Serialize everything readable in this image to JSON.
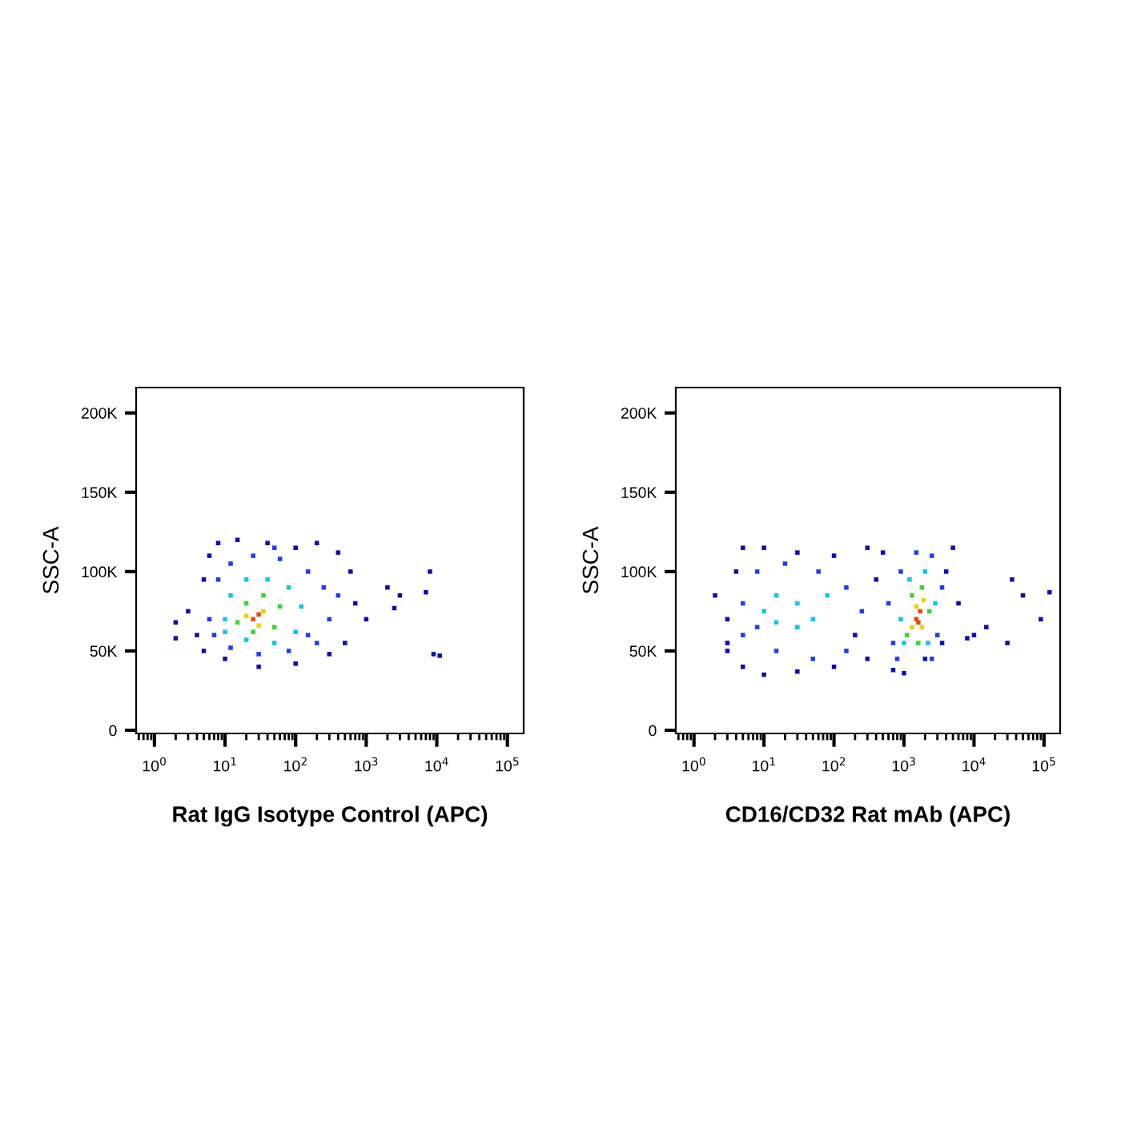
{
  "chart_data": [
    {
      "type": "scatter",
      "xlabel": "Rat IgG Isotype Control (APC)",
      "ylabel": "SSC-A",
      "log": "x",
      "marker": "square",
      "grid": false,
      "xlim": [
        0.55,
        170000
      ],
      "ylim": [
        -2000,
        216000
      ],
      "xticks": [
        {
          "value": 1,
          "label": "10$^{0}$"
        },
        {
          "value": 10,
          "label": "10$^{1}$"
        },
        {
          "value": 100,
          "label": "10$^{2}$"
        },
        {
          "value": 1000,
          "label": "10$^{3}$"
        },
        {
          "value": 10000,
          "label": "10$^{4}$"
        },
        {
          "value": 100000,
          "label": "10$^{5}$"
        }
      ],
      "yticks": [
        0,
        {
          "value": 50000,
          "label": "50K"
        },
        {
          "value": 100000,
          "label": "100K"
        },
        {
          "value": 150000,
          "label": "150K"
        },
        {
          "value": 200000,
          "label": "200K"
        }
      ],
      "series": [
        {
          "color": "#1010a0",
          "x": [
            4,
            3,
            5,
            6,
            8,
            15,
            40,
            100,
            200,
            400,
            600,
            500,
            300,
            100,
            30,
            10,
            5,
            2,
            2,
            700,
            2000,
            3000,
            8000,
            7000,
            9000,
            11000,
            2500,
            1000
          ],
          "values": [
            60000,
            75000,
            95000,
            110000,
            118000,
            120000,
            118000,
            115000,
            118000,
            112000,
            100000,
            55000,
            48000,
            42000,
            40000,
            45000,
            50000,
            68000,
            58000,
            80000,
            90000,
            85000,
            100000,
            87000,
            48000,
            47000,
            77000,
            70000
          ]
        },
        {
          "color": "#2040e0",
          "x": [
            6,
            8,
            12,
            25,
            60,
            150,
            250,
            300,
            200,
            80,
            30,
            12,
            7,
            400,
            50,
            150
          ],
          "values": [
            70000,
            95000,
            105000,
            110000,
            108000,
            100000,
            90000,
            70000,
            55000,
            50000,
            48000,
            52000,
            60000,
            85000,
            115000,
            60000
          ]
        },
        {
          "color": "#20c0e0",
          "x": [
            10,
            12,
            20,
            40,
            80,
            120,
            100,
            50,
            20,
            10
          ],
          "values": [
            70000,
            85000,
            95000,
            95000,
            90000,
            78000,
            62000,
            55000,
            57000,
            62000
          ]
        },
        {
          "color": "#40d040",
          "x": [
            15,
            20,
            35,
            60,
            50,
            25
          ],
          "values": [
            68000,
            80000,
            85000,
            78000,
            65000,
            62000
          ]
        },
        {
          "color": "#e8d020",
          "x": [
            20,
            35,
            30
          ],
          "values": [
            72000,
            75000,
            66000
          ]
        },
        {
          "color": "#e05010",
          "x": [
            25,
            30
          ],
          "values": [
            70000,
            73000
          ]
        }
      ]
    },
    {
      "type": "scatter",
      "xlabel": "CD16/CD32 Rat mAb (APC)",
      "ylabel": "SSC-A",
      "log": "x",
      "marker": "square",
      "grid": false,
      "xlim": [
        0.55,
        170000
      ],
      "ylim": [
        -2000,
        216000
      ],
      "xticks": [
        {
          "value": 1,
          "label": "10$^{0}$"
        },
        {
          "value": 10,
          "label": "10$^{1}$"
        },
        {
          "value": 100,
          "label": "10$^{2}$"
        },
        {
          "value": 1000,
          "label": "10$^{3}$"
        },
        {
          "value": 10000,
          "label": "10$^{4}$"
        },
        {
          "value": 100000,
          "label": "10$^{5}$"
        }
      ],
      "yticks": [
        0,
        {
          "value": 50000,
          "label": "50K"
        },
        {
          "value": 100000,
          "label": "100K"
        },
        {
          "value": 150000,
          "label": "150K"
        },
        {
          "value": 200000,
          "label": "200K"
        }
      ],
      "series": [
        {
          "color": "#1010a0",
          "x": [
            2,
            3,
            3,
            4,
            5,
            10,
            30,
            100,
            300,
            500,
            3,
            5,
            10,
            30,
            100,
            300,
            700,
            1000,
            2000,
            3500,
            4000,
            5000,
            6000,
            8000,
            10000,
            15000,
            30000,
            35000,
            50000,
            90000,
            120000,
            200,
            400
          ],
          "values": [
            85000,
            50000,
            55000,
            100000,
            115000,
            115000,
            112000,
            110000,
            115000,
            112000,
            70000,
            40000,
            35000,
            37000,
            40000,
            45000,
            38000,
            36000,
            45000,
            55000,
            100000,
            115000,
            80000,
            58000,
            60000,
            65000,
            55000,
            95000,
            85000,
            70000,
            87000,
            60000,
            95000
          ]
        },
        {
          "color": "#2040e0",
          "x": [
            5,
            5,
            8,
            20,
            60,
            150,
            250,
            150,
            50,
            15,
            8,
            700,
            800,
            900,
            1500,
            2500,
            3500,
            3000,
            2500,
            600
          ],
          "values": [
            80000,
            60000,
            100000,
            105000,
            100000,
            90000,
            75000,
            50000,
            45000,
            50000,
            65000,
            55000,
            45000,
            100000,
            112000,
            110000,
            90000,
            60000,
            45000,
            80000
          ]
        },
        {
          "color": "#20c0e0",
          "x": [
            10,
            15,
            30,
            50,
            30,
            15,
            80,
            1000,
            1200,
            2000,
            2800,
            2200,
            900
          ],
          "values": [
            75000,
            85000,
            80000,
            70000,
            65000,
            68000,
            85000,
            55000,
            95000,
            100000,
            80000,
            55000,
            70000
          ]
        },
        {
          "color": "#40d040",
          "x": [
            1100,
            1300,
            1800,
            2300,
            1600
          ],
          "values": [
            60000,
            85000,
            90000,
            75000,
            55000
          ]
        },
        {
          "color": "#e8d020",
          "x": [
            1300,
            1500,
            1900,
            1800
          ],
          "values": [
            65000,
            78000,
            82000,
            65000
          ]
        },
        {
          "color": "#e05010",
          "x": [
            1500,
            1700,
            1600
          ],
          "values": [
            70000,
            75000,
            68000
          ]
        }
      ]
    }
  ]
}
